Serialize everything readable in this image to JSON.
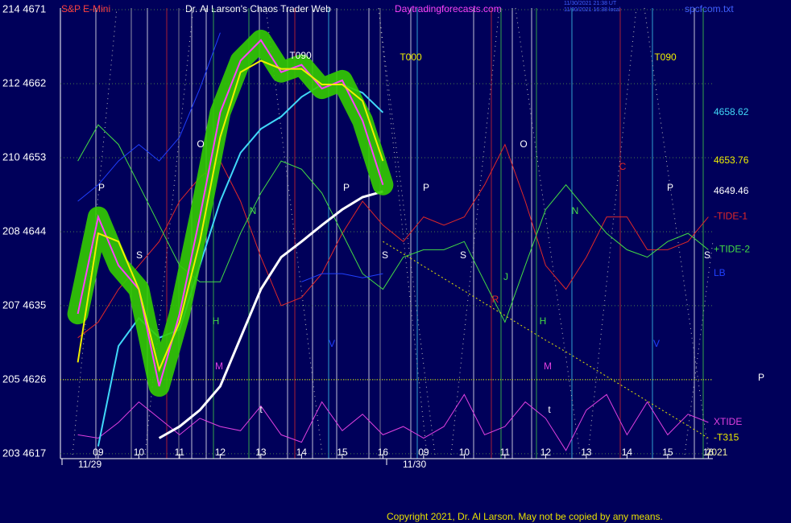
{
  "header": {
    "symbol": "S&P E-Mini",
    "site": "Dr. Al Larson's Chaos Trader Web",
    "url": "Daytradingforecasts.com",
    "stamp_1": "11/30/2021 21:38 UT",
    "stamp_2": "11/30/2021 16:38 local",
    "file": "spcfcom.txt"
  },
  "footer": {
    "copyright": "Copyright 2021, Dr. Al Larson. May not be copied by any means."
  },
  "chart_data": {
    "type": "line",
    "categories": [
      null,
      "09",
      null,
      "10",
      null,
      "11",
      null,
      "12",
      null,
      "13",
      null,
      "14",
      null,
      "15",
      null,
      "16",
      null,
      "09",
      null,
      "10",
      null,
      "11",
      null,
      "12",
      null,
      "13",
      null,
      "14",
      null,
      "15",
      null,
      "16"
    ],
    "day_labels": [
      "11/29",
      "11/30"
    ],
    "ylim": [
      4616.4,
      4671.2
    ],
    "yticks": [
      {
        "value": 4617,
        "label": "203 4617"
      },
      {
        "value": 4626,
        "label": "205 4626"
      },
      {
        "value": 4635,
        "label": "207 4635"
      },
      {
        "value": 4644,
        "label": "208 4644"
      },
      {
        "value": 4653,
        "label": "210 4653"
      },
      {
        "value": 4662,
        "label": "212 4662"
      },
      {
        "value": 4671,
        "label": "214 4671"
      }
    ],
    "grid": true,
    "reference_line": 4626,
    "series": [
      {
        "name": "-TIDE-1",
        "color": "#e02828",
        "values": [
          4631.1,
          4633.0,
          4637.0,
          4639.9,
          4642.8,
          4647.7,
          4650.6,
          4652.6,
          4647.7,
          4640.9,
          4635.0,
          4636.0,
          4638.9,
          4643.8,
          4647.7,
          4644.8,
          4642.8,
          4645.8,
          4644.8,
          4645.8,
          4649.7,
          4654.6,
          4647.7,
          4639.9,
          4637.0,
          4640.9,
          4645.8,
          4645.8,
          4641.8,
          4641.8,
          4642.8,
          4645.8
        ]
      },
      {
        "name": "+TIDE-2",
        "color": "#44dd44",
        "values": [
          4652.6,
          4657.0,
          4654.6,
          4649.7,
          4644.8,
          4639.9,
          4637.9,
          4637.9,
          4643.8,
          4648.7,
          4652.6,
          4651.6,
          4648.7,
          4643.8,
          4638.9,
          4637.0,
          4640.9,
          4641.8,
          4641.8,
          4642.8,
          4637.9,
          4633.0,
          4639.9,
          4646.7,
          4649.7,
          4646.7,
          4643.8,
          4641.8,
          4640.9,
          4642.8,
          4643.8,
          4641.8
        ]
      },
      {
        "name": "LB",
        "color": "#2040ff",
        "values": [
          4647.7,
          4649.7,
          4652.6,
          4654.6,
          4652.6,
          4655.5,
          4661.4,
          4668.2,
          null,
          null,
          null,
          4637.9,
          4638.9,
          4638.9,
          4638.4,
          4638.9,
          null,
          null,
          null,
          null,
          null,
          null,
          null,
          null,
          null,
          null,
          null,
          null,
          null,
          null,
          null,
          null
        ]
      },
      {
        "name": "XTIDE",
        "color": "#e040e0",
        "values": [
          4619.3,
          4618.9,
          4620.8,
          4623.3,
          4621.3,
          4619.3,
          4621.3,
          4620.3,
          4619.8,
          4622.8,
          4619.3,
          4618.4,
          4623.3,
          4619.8,
          4621.8,
          4619.3,
          4620.3,
          4618.9,
          4620.3,
          4624.2,
          4619.3,
          4620.3,
          4623.3,
          4621.3,
          4617.4,
          4622.3,
          4624.2,
          4619.3,
          4623.3,
          4619.3,
          4621.8,
          4620.8
        ]
      },
      {
        "name": "-T315",
        "color": "#e8e800",
        "dotted": true,
        "values": [
          null,
          null,
          null,
          null,
          null,
          null,
          null,
          null,
          null,
          null,
          null,
          null,
          null,
          null,
          null,
          4642.8,
          4641.3,
          4639.8,
          4638.3,
          4636.8,
          4635.3,
          4633.8,
          4632.3,
          4630.8,
          4629.4,
          4627.9,
          4626.4,
          4624.9,
          4623.4,
          4621.9,
          4620.4,
          4618.9
        ]
      },
      {
        "name": "4649.46",
        "color": "#ffffff",
        "width": 3,
        "values": [
          null,
          null,
          null,
          null,
          4618.9,
          4620.3,
          4622.3,
          4625.2,
          4631.1,
          4637.0,
          4640.9,
          4642.8,
          4644.8,
          4646.7,
          4648.2,
          4648.9,
          null,
          null,
          null,
          null,
          null,
          null,
          null,
          null,
          null,
          null,
          null,
          null,
          null,
          null,
          null,
          null
        ]
      },
      {
        "name": "4658.62",
        "color": "#40d8f8",
        "width": 2,
        "values": [
          null,
          4617.9,
          4630.1,
          4633.5,
          4631.1,
          4632.1,
          4639.9,
          4647.7,
          4653.6,
          4656.5,
          4658.0,
          4660.4,
          4661.9,
          4661.9,
          4660.9,
          4658.5,
          null,
          null,
          null,
          null,
          null,
          null,
          null,
          null,
          null,
          null,
          null,
          null,
          null,
          null,
          null,
          null
        ]
      },
      {
        "color": "#ff40ff",
        "band": "#33cc00",
        "width": 2,
        "values": [
          4634.0,
          4645.8,
          4639.9,
          4637.0,
          4625.2,
          4634.0,
          4645.8,
          4658.5,
          4664.8,
          4667.3,
          4663.4,
          4664.3,
          4661.4,
          4662.4,
          4657.5,
          4649.7,
          null,
          null,
          null,
          null,
          null,
          null,
          null,
          null,
          null,
          null,
          null,
          null,
          null,
          null,
          null,
          null
        ]
      },
      {
        "name": "4653.76",
        "color": "#f0f000",
        "width": 2,
        "values": [
          4628.1,
          4643.8,
          4642.8,
          4637.0,
          4627.2,
          4633.0,
          4642.8,
          4655.5,
          4663.4,
          4664.8,
          4663.8,
          4663.8,
          4661.9,
          4661.9,
          4659.9,
          4652.6,
          null,
          null,
          null,
          null,
          null,
          null,
          null,
          null,
          null,
          null,
          null,
          null,
          null,
          null,
          null,
          null
        ]
      }
    ],
    "annotations": [
      {
        "text": "P",
        "color": "#ffffff"
      },
      {
        "text": "O",
        "color": "#ffffff"
      },
      {
        "text": "S",
        "color": "#ffffff"
      },
      {
        "text": "N",
        "color": "#44dd44"
      },
      {
        "text": "H",
        "color": "#44dd44"
      },
      {
        "text": "M",
        "color": "#e040e0"
      },
      {
        "text": "T090",
        "color": "#ffffff"
      },
      {
        "text": "P",
        "color": "#ffffff"
      },
      {
        "text": "S",
        "color": "#ffffff"
      },
      {
        "text": "T000",
        "color": "#f0f000"
      },
      {
        "text": "P",
        "color": "#ffffff"
      },
      {
        "text": "S",
        "color": "#ffffff"
      },
      {
        "text": "O",
        "color": "#ffffff"
      },
      {
        "text": "J",
        "color": "#44dd44"
      },
      {
        "text": "R",
        "color": "#e02828"
      },
      {
        "text": "H",
        "color": "#44dd44"
      },
      {
        "text": "M",
        "color": "#e040e0"
      },
      {
        "text": "N",
        "color": "#44dd44"
      },
      {
        "text": "C",
        "color": "#e02828"
      },
      {
        "text": "T090",
        "color": "#f0f000"
      },
      {
        "text": "P",
        "color": "#ffffff"
      },
      {
        "text": "S",
        "color": "#ffffff"
      },
      {
        "text": "t",
        "color": "#ffffff"
      },
      {
        "text": "t",
        "color": "#ffffff"
      },
      {
        "text": "V",
        "color": "#2040ff"
      },
      {
        "text": "V",
        "color": "#2040ff"
      },
      {
        "text": "P",
        "color": "#ffffff"
      },
      {
        "text": "2021",
        "color": "#f0f0a0"
      }
    ]
  }
}
